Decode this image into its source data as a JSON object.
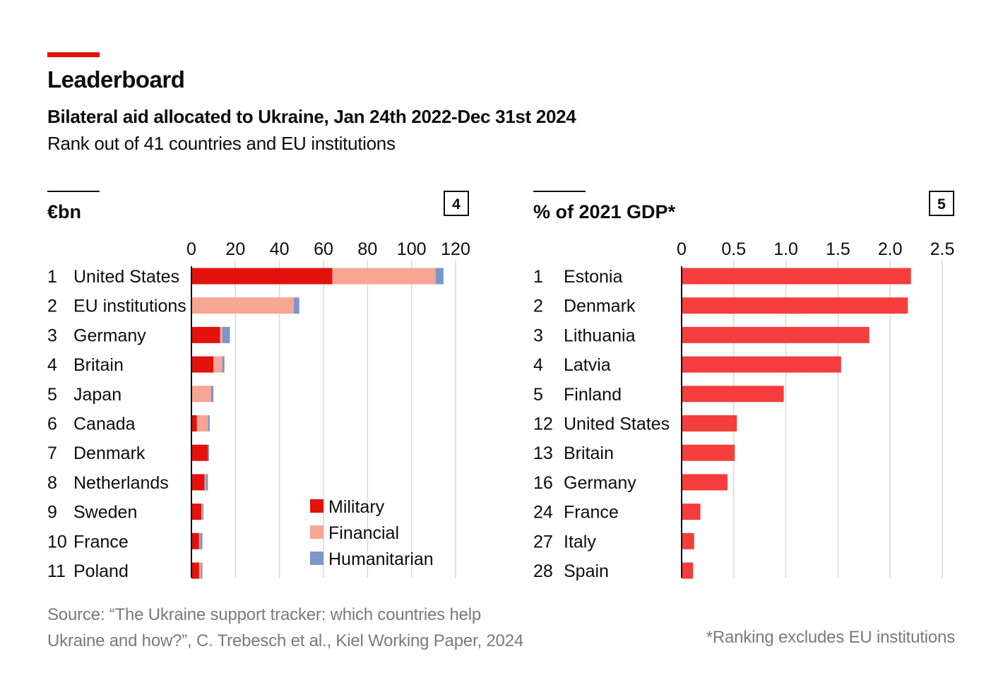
{
  "header": {
    "title": "Leaderboard",
    "subtitle": "Bilateral aid allocated to Ukraine, Jan 24th 2022-Dec 31st 2024",
    "subtitle2": "Rank out of 41 countries and EU institutions"
  },
  "footer": {
    "source": "Source: “The Ukraine support tracker: which countries help Ukraine and how?”, C. Trebesch et al., Kiel Working Paper, 2024",
    "note": "*Ranking excludes EU institutions"
  },
  "colors": {
    "accent": "#e3120b",
    "military": "#e3120b",
    "financial": "#f7a595",
    "humanitarian": "#7b96c8",
    "gdp_bar": "#f53d3d",
    "grid": "#d9d9d9"
  },
  "chart_data": [
    {
      "type": "bar",
      "stacked": true,
      "orientation": "horizontal",
      "title": "€bn",
      "panel_number": "4",
      "xlim": [
        0,
        120
      ],
      "xticks": [
        "0",
        "20",
        "40",
        "60",
        "80",
        "100",
        "120"
      ],
      "xtick_values": [
        0,
        20,
        40,
        60,
        80,
        100,
        120
      ],
      "ranks": [
        "1",
        "2",
        "3",
        "4",
        "5",
        "6",
        "7",
        "8",
        "9",
        "10",
        "11"
      ],
      "categories": [
        "United States",
        "EU institutions",
        "Germany",
        "Britain",
        "Japan",
        "Canada",
        "Denmark",
        "Netherlands",
        "Sweden",
        "France",
        "Poland"
      ],
      "series": [
        {
          "name": "Military",
          "color_key": "military",
          "values": [
            64,
            0,
            13,
            10,
            0,
            2.5,
            7.5,
            6,
            4.5,
            3.5,
            3.5
          ]
        },
        {
          "name": "Financial",
          "color_key": "financial",
          "values": [
            47,
            46.5,
            1,
            4,
            9,
            5,
            0,
            0.5,
            0.5,
            0.5,
            1
          ]
        },
        {
          "name": "Humanitarian",
          "color_key": "humanitarian",
          "values": [
            3.5,
            2.5,
            3.5,
            1,
            1,
            0.8,
            0.5,
            1,
            0.5,
            1,
            0.5
          ]
        }
      ],
      "legend": {
        "position": "bottom-right",
        "items": [
          "Military",
          "Financial",
          "Humanitarian"
        ]
      }
    },
    {
      "type": "bar",
      "orientation": "horizontal",
      "title": "% of 2021 GDP*",
      "panel_number": "5",
      "xlim": [
        0,
        2.5
      ],
      "xticks": [
        "0",
        "0.5",
        "1.0",
        "1.5",
        "2.0",
        "2.5"
      ],
      "xtick_values": [
        0,
        0.5,
        1.0,
        1.5,
        2.0,
        2.5
      ],
      "ranks": [
        "1",
        "2",
        "3",
        "4",
        "5",
        "12",
        "13",
        "16",
        "24",
        "27",
        "28"
      ],
      "categories": [
        "Estonia",
        "Denmark",
        "Lithuania",
        "Latvia",
        "Finland",
        "United States",
        "Britain",
        "Germany",
        "France",
        "Italy",
        "Spain"
      ],
      "values": [
        2.2,
        2.17,
        1.8,
        1.53,
        0.98,
        0.53,
        0.51,
        0.44,
        0.18,
        0.12,
        0.11
      ]
    }
  ]
}
